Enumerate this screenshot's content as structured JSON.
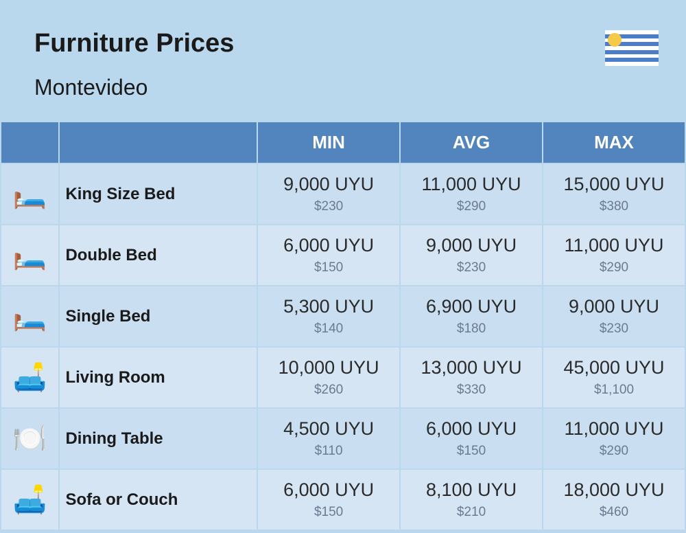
{
  "header": {
    "title": "Furniture Prices",
    "subtitle": "Montevideo"
  },
  "flag": {
    "stripe_color": "#4b7dc9",
    "sun_color": "#f7c948",
    "bg_color": "#ffffff"
  },
  "table": {
    "columns": [
      "MIN",
      "AVG",
      "MAX"
    ],
    "header_bg": "#5285bd",
    "header_color": "#ffffff",
    "row_bg": "#c9dff1",
    "row_alt_bg": "#d5e5f3",
    "rows": [
      {
        "icon": "🛏️",
        "name": "King Size Bed",
        "min": {
          "local": "9,000 UYU",
          "usd": "$230"
        },
        "avg": {
          "local": "11,000 UYU",
          "usd": "$290"
        },
        "max": {
          "local": "15,000 UYU",
          "usd": "$380"
        }
      },
      {
        "icon": "🛏️",
        "name": "Double Bed",
        "min": {
          "local": "6,000 UYU",
          "usd": "$150"
        },
        "avg": {
          "local": "9,000 UYU",
          "usd": "$230"
        },
        "max": {
          "local": "11,000 UYU",
          "usd": "$290"
        }
      },
      {
        "icon": "🛏️",
        "name": "Single Bed",
        "min": {
          "local": "5,300 UYU",
          "usd": "$140"
        },
        "avg": {
          "local": "6,900 UYU",
          "usd": "$180"
        },
        "max": {
          "local": "9,000 UYU",
          "usd": "$230"
        }
      },
      {
        "icon": "🛋️",
        "name": "Living Room",
        "min": {
          "local": "10,000 UYU",
          "usd": "$260"
        },
        "avg": {
          "local": "13,000 UYU",
          "usd": "$330"
        },
        "max": {
          "local": "45,000 UYU",
          "usd": "$1,100"
        }
      },
      {
        "icon": "🍽️",
        "name": "Dining Table",
        "min": {
          "local": "4,500 UYU",
          "usd": "$110"
        },
        "avg": {
          "local": "6,000 UYU",
          "usd": "$150"
        },
        "max": {
          "local": "11,000 UYU",
          "usd": "$290"
        }
      },
      {
        "icon": "🛋️",
        "name": "Sofa or Couch",
        "min": {
          "local": "6,000 UYU",
          "usd": "$150"
        },
        "avg": {
          "local": "8,100 UYU",
          "usd": "$210"
        },
        "max": {
          "local": "18,000 UYU",
          "usd": "$460"
        }
      }
    ]
  },
  "colors": {
    "page_bg": "#b9d7ed",
    "text": "#1a1a1a",
    "sub_text": "#6b7a8f"
  }
}
